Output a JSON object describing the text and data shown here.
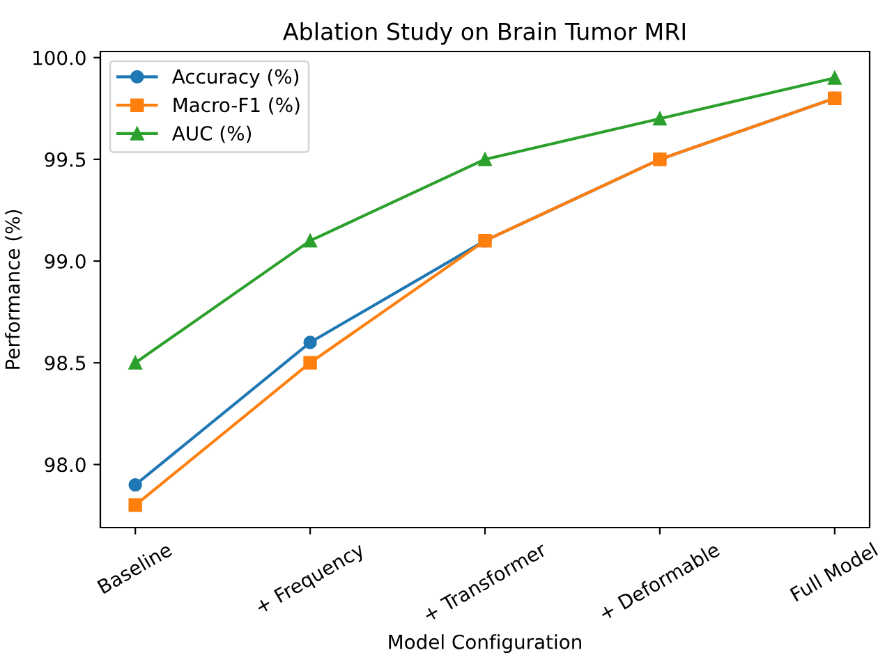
{
  "chart_data": {
    "type": "line",
    "title": "Ablation Study on Brain Tumor MRI",
    "xlabel": "Model Configuration",
    "ylabel": "Performance (%)",
    "categories": [
      "Baseline",
      "+ Frequency",
      "+ Transformer",
      "+ Deformable",
      "Full Model"
    ],
    "series": [
      {
        "name": "Accuracy (%)",
        "color": "#1f77b4",
        "marker": "circle",
        "values": [
          97.9,
          98.6,
          99.1,
          99.5,
          99.8
        ]
      },
      {
        "name": "Macro-F1 (%)",
        "color": "#ff7f0e",
        "marker": "square",
        "values": [
          97.8,
          98.5,
          99.1,
          99.5,
          99.8
        ]
      },
      {
        "name": "AUC (%)",
        "color": "#2ca02c",
        "marker": "triangle",
        "values": [
          98.5,
          99.1,
          99.5,
          99.7,
          99.9
        ]
      }
    ],
    "ylim": [
      97.69,
      100.03
    ],
    "yticks": [
      {
        "value": 98.0,
        "label": "98.0"
      },
      {
        "value": 98.5,
        "label": "98.5"
      },
      {
        "value": 99.0,
        "label": "99.0"
      },
      {
        "value": 99.5,
        "label": "99.5"
      },
      {
        "value": 100.0,
        "label": "100.0"
      }
    ],
    "grid": false,
    "legend": "top left",
    "line_style": "solid"
  }
}
